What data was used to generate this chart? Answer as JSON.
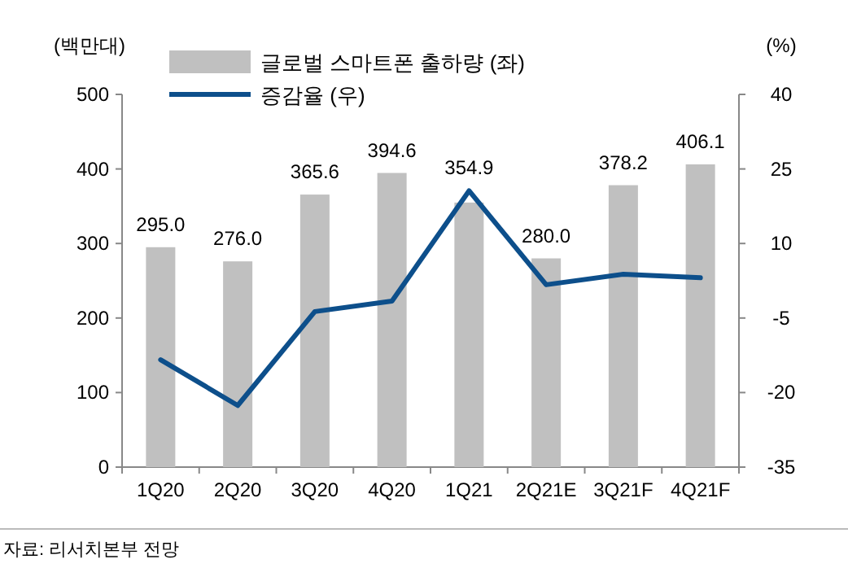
{
  "chart_data": {
    "type": "bar",
    "categories": [
      "1Q20",
      "2Q20",
      "3Q20",
      "4Q20",
      "1Q21",
      "2Q21E",
      "3Q21F",
      "4Q21F"
    ],
    "series": [
      {
        "name": "글로벌 스마트폰 출하량 (좌)",
        "color": "#c0c0c0",
        "values": [
          295.0,
          276.0,
          365.6,
          394.6,
          354.9,
          280.0,
          378.2,
          406.1
        ],
        "value_labels": [
          "295.0",
          "276.0",
          "365.6",
          "394.6",
          "354.9",
          "280.0",
          "378.2",
          "406.1"
        ]
      },
      {
        "name": "증감율 (우)",
        "type": "line",
        "axis": "y2",
        "color": "#0d4f8b",
        "values": [
          -13.4,
          -22.6,
          -3.7,
          -1.6,
          20.6,
          1.7,
          3.8,
          3.1
        ]
      }
    ],
    "ylabel": "(백만대)",
    "y2label": "(%)",
    "ylim": [
      0,
      500
    ],
    "yticks": [
      0,
      100,
      200,
      300,
      400,
      500
    ],
    "y2lim": [
      -35,
      40
    ],
    "y2ticks": [
      40,
      25,
      10,
      -5,
      -20,
      -35
    ],
    "legend": "top",
    "grid": false,
    "marker": "none",
    "line_style": "solid",
    "annotations": [
      "자료: 리서치본부 전망"
    ]
  }
}
